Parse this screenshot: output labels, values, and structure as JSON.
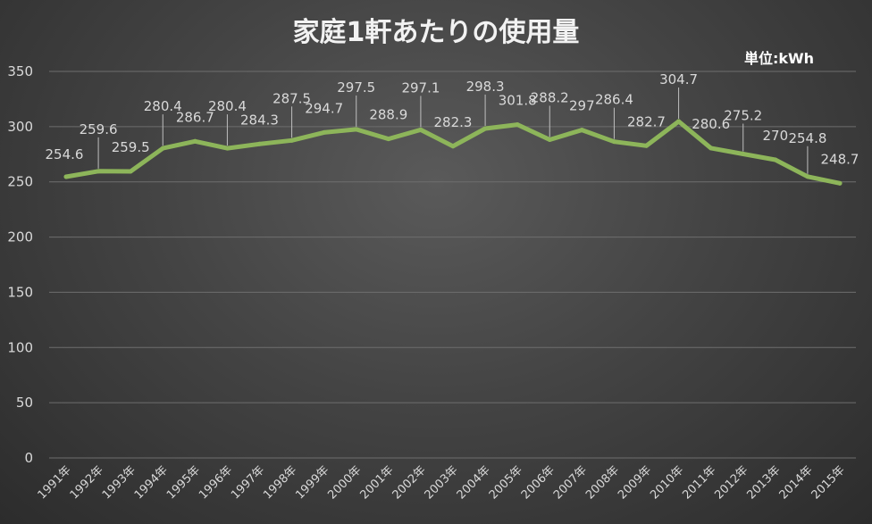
{
  "chart_data": {
    "type": "line",
    "title": "家庭1軒あたりの使用量",
    "unit_label": "単位:kWh",
    "xlabel": "",
    "ylabel": "",
    "ylim": [
      0,
      350
    ],
    "yticks": [
      0,
      50,
      100,
      150,
      200,
      250,
      300,
      350
    ],
    "grid": true,
    "categories": [
      "1991年",
      "1992年",
      "1993年",
      "1994年",
      "1995年",
      "1996年",
      "1997年",
      "1998年",
      "1999年",
      "2000年",
      "2001年",
      "2002年",
      "2003年",
      "2004年",
      "2005年",
      "2006年",
      "2007年",
      "2008年",
      "2009年",
      "2010年",
      "2011年",
      "2012年",
      "2013年",
      "2014年",
      "2015年"
    ],
    "series": [
      {
        "values": [
          254.6,
          259.6,
          259.5,
          280.4,
          286.7,
          280.4,
          284.3,
          287.5,
          294.7,
          297.5,
          288.9,
          297.1,
          282.3,
          298.3,
          301.8,
          288.2,
          297,
          286.4,
          282.7,
          304.7,
          280.6,
          275.2,
          270,
          254.8,
          248.7
        ],
        "color": "#8db55a"
      }
    ],
    "colors": {
      "gridline": "#6e6e6e",
      "text": "#d9d9d9",
      "line": "#8db55a"
    }
  }
}
